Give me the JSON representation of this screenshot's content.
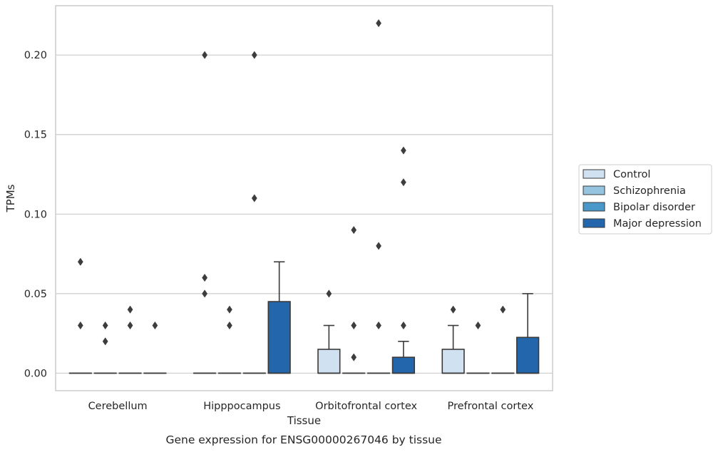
{
  "chart_data": {
    "type": "boxplot",
    "title": "",
    "caption": "Gene expression for ENSG00000267046 by tissue",
    "xlabel": "Tissue",
    "ylabel": "TPMs",
    "ylim": [
      -0.011,
      0.231
    ],
    "yticks": [
      "0.00",
      "0.05",
      "0.10",
      "0.15",
      "0.20"
    ],
    "grid": "horizontal",
    "legend_position": "right",
    "categories": [
      "Cerebellum",
      "Hipppocampus",
      "Orbitofrontal cortex",
      "Prefrontal cortex"
    ],
    "series": [
      {
        "name": "Control",
        "color": "#d0e1f2",
        "boxes": [
          {
            "q1": 0,
            "median": 0,
            "q3": 0,
            "whislo": 0,
            "whishi": 0,
            "fliers": [
              0.03,
              0.07
            ]
          },
          {
            "q1": 0,
            "median": 0,
            "q3": 0,
            "whislo": 0,
            "whishi": 0,
            "fliers": [
              0.06,
              0.05,
              0.2
            ]
          },
          {
            "q1": 0,
            "median": 0,
            "q3": 0.015,
            "whislo": 0,
            "whishi": 0.03,
            "fliers": [
              0.05
            ]
          },
          {
            "q1": 0,
            "median": 0,
            "q3": 0.015,
            "whislo": 0,
            "whishi": 0.03,
            "fliers": [
              0.04
            ]
          }
        ]
      },
      {
        "name": "Schizophrenia",
        "color": "#94c4df",
        "boxes": [
          {
            "q1": 0,
            "median": 0,
            "q3": 0,
            "whislo": 0,
            "whishi": 0,
            "fliers": [
              0.03,
              0.02
            ]
          },
          {
            "q1": 0,
            "median": 0,
            "q3": 0,
            "whislo": 0,
            "whishi": 0,
            "fliers": [
              0.04,
              0.03
            ]
          },
          {
            "q1": 0,
            "median": 0,
            "q3": 0,
            "whislo": 0,
            "whishi": 0,
            "fliers": [
              0.09,
              0.03,
              0.01
            ]
          },
          {
            "q1": 0,
            "median": 0,
            "q3": 0,
            "whislo": 0,
            "whishi": 0,
            "fliers": [
              0.03
            ]
          }
        ]
      },
      {
        "name": "Bipolar disorder",
        "color": "#4a98c9",
        "boxes": [
          {
            "q1": 0,
            "median": 0,
            "q3": 0,
            "whislo": 0,
            "whishi": 0,
            "fliers": [
              0.04,
              0.03
            ]
          },
          {
            "q1": 0,
            "median": 0,
            "q3": 0,
            "whislo": 0,
            "whishi": 0,
            "fliers": [
              0.2,
              0.11
            ]
          },
          {
            "q1": 0,
            "median": 0,
            "q3": 0,
            "whislo": 0,
            "whishi": 0,
            "fliers": [
              0.22,
              0.08,
              0.03
            ]
          },
          {
            "q1": 0,
            "median": 0,
            "q3": 0,
            "whislo": 0,
            "whishi": 0,
            "fliers": [
              0.04
            ]
          }
        ]
      },
      {
        "name": "Major depression",
        "color": "#2366ac",
        "boxes": [
          {
            "q1": 0,
            "median": 0,
            "q3": 0,
            "whislo": 0,
            "whishi": 0,
            "fliers": [
              0.03
            ]
          },
          {
            "q1": 0,
            "median": 0,
            "q3": 0.045,
            "whislo": 0,
            "whishi": 0.07,
            "fliers": []
          },
          {
            "q1": 0,
            "median": 0,
            "q3": 0.01,
            "whislo": 0,
            "whishi": 0.02,
            "fliers": [
              0.14,
              0.12,
              0.03
            ]
          },
          {
            "q1": 0,
            "median": 0,
            "q3": 0.0225,
            "whislo": 0,
            "whishi": 0.05,
            "fliers": []
          }
        ]
      }
    ]
  }
}
